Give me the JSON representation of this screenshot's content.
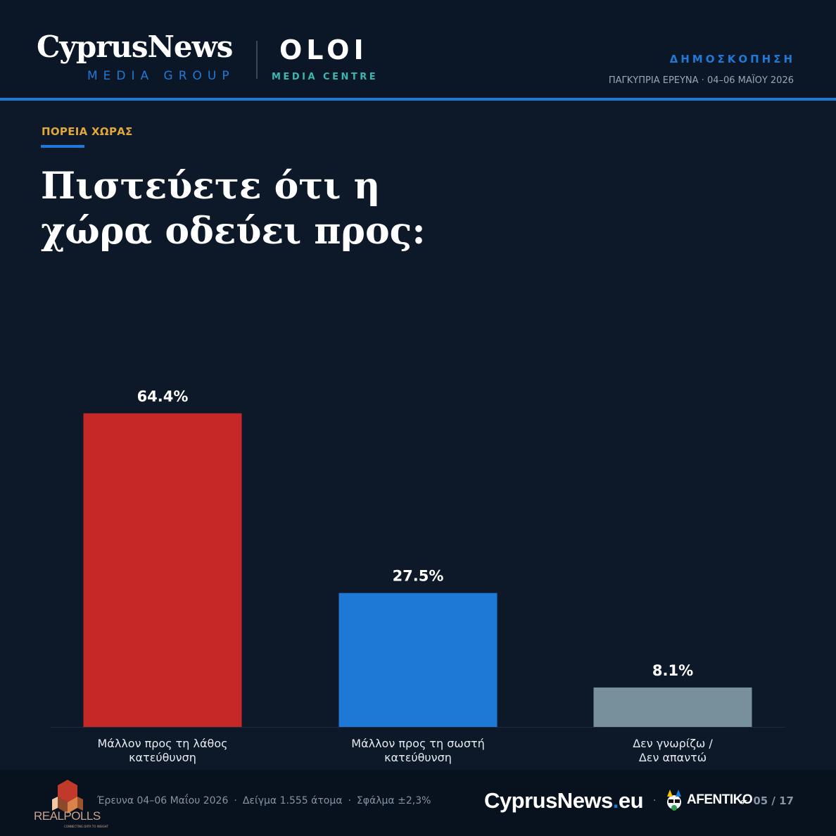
{
  "header": {
    "brand_main": "CyprusNews",
    "brand_sub": "MEDIA GROUP",
    "partner_main": "OLOI",
    "partner_sub": "MEDIA CENTRE",
    "kicker": "ΔΗΜΟΣΚΟΠΗΣΗ",
    "survey": "ΠΑΓΚΥΠΡΙΑ ΕΡΕΥΝΑ · 04–06 ΜΑΪΟΥ 2026"
  },
  "section_label": "ΠΟΡΕΙΑ ΧΩΡΑΣ",
  "question": "Πιστεύετε ότι η χώρα οδεύει προς:",
  "chart_data": {
    "type": "bar",
    "categories": [
      [
        "Μάλλον προς τη λάθος",
        "κατεύθυνση"
      ],
      [
        "Μάλλον προς τη σωστή",
        "κατεύθυνση"
      ],
      [
        "Δεν γνωρίζω /",
        "Δεν απαντώ"
      ]
    ],
    "values": [
      64.4,
      27.5,
      8.1
    ],
    "value_labels": [
      "64.4%",
      "27.5%",
      "8.1%"
    ],
    "colors": [
      "#c62828",
      "#1e78d6",
      "#78909c"
    ],
    "ylim": [
      0,
      100
    ],
    "grid": false,
    "legend": "none"
  },
  "footer": {
    "pollster_logo": "REALPOLLS",
    "pollster_tagline": "CONNECTING DATA TO INSIGHT",
    "meta": [
      "Έρευνα 04–06 Μαΐου 2026",
      "Δείγμα 1.555 άτομα",
      "Σφάλμα ±2,3%"
    ],
    "brand_name": "CyprusNews",
    "brand_tld": "eu",
    "separator": "·",
    "partner_logo": "AFENTIKO",
    "partner_tld": "gr",
    "page": "05 / 17"
  },
  "colors": {
    "background": "#0d1829",
    "accent": "#1e7ad8",
    "section_label": "#e0a83a",
    "teal": "#39b7b0"
  }
}
